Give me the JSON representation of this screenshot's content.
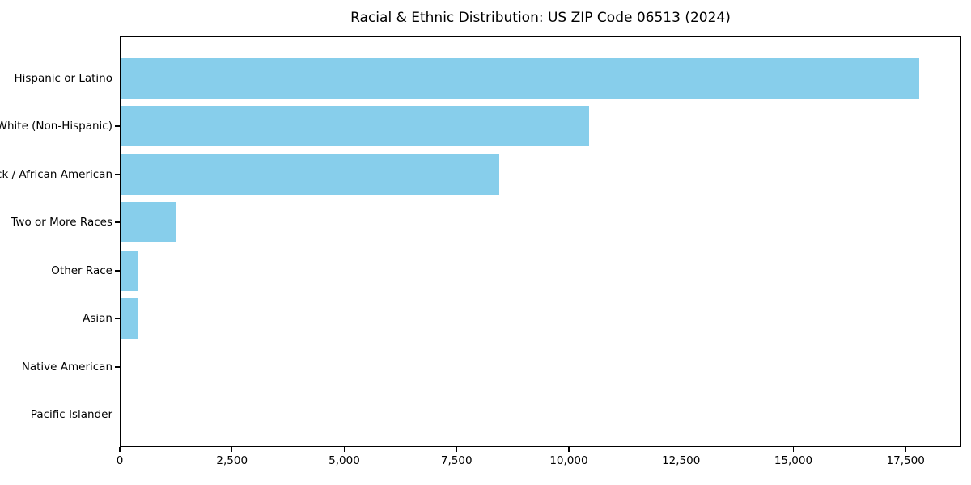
{
  "figure": {
    "background": "#ffffff"
  },
  "chart_data": {
    "type": "bar",
    "orientation": "horizontal",
    "title": "Racial & Ethnic Distribution: US ZIP Code 06513 (2024)",
    "categories": [
      "Hispanic or Latino",
      "White (Non-Hispanic)",
      "Black / African American",
      "Two or More Races",
      "Other Race",
      "Asian",
      "Native American",
      "Pacific Islander"
    ],
    "values": [
      17790,
      10430,
      8430,
      1230,
      370,
      390,
      0,
      0
    ],
    "bar_color": "#87CEEB",
    "axis_color": "#000000",
    "text_color": "#000000",
    "xlabel": "",
    "ylabel": "",
    "xlim": [
      0,
      18740
    ],
    "x_ticks": [
      0,
      2500,
      5000,
      7500,
      10000,
      12500,
      15000,
      17500
    ],
    "x_tick_labels": [
      "0",
      "2,500",
      "5,000",
      "7,500",
      "10,000",
      "12,500",
      "15,000",
      "17,500"
    ],
    "grid": false,
    "legend": "none"
  }
}
